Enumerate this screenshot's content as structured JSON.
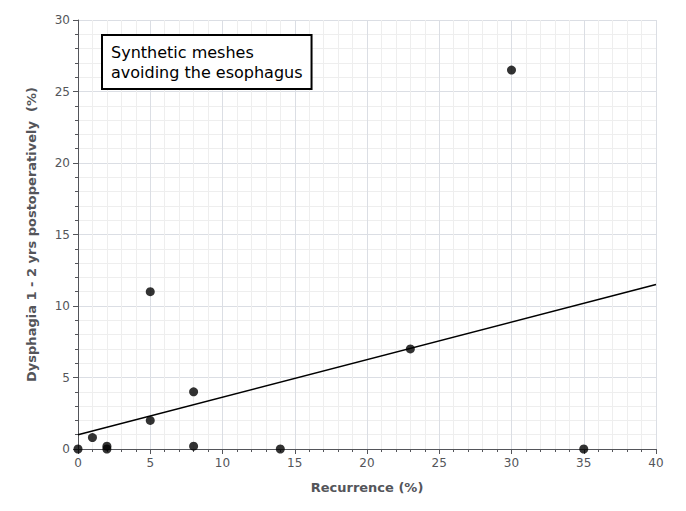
{
  "chart_data": {
    "type": "scatter",
    "xlabel": "Recurrence (%)",
    "ylabel": "Dysphagia 1 - 2 yrs postoperatively  (%)",
    "annotation": "Synthetic meshes\navoiding the esophagus",
    "series": [
      {
        "type": "scatter",
        "color": "#000000",
        "marker": "circle",
        "x": [
          0,
          1,
          2,
          2,
          5,
          5,
          8,
          8,
          14,
          23,
          30,
          35
        ],
        "values": [
          0,
          0.8,
          0.2,
          0,
          11,
          2,
          0.2,
          4,
          0,
          7,
          26.5,
          0
        ]
      },
      {
        "type": "line",
        "color": "#000000",
        "line_style": "solid",
        "x": [
          0,
          40
        ],
        "values": [
          1.0,
          11.5
        ]
      }
    ],
    "xlim": [
      0,
      40
    ],
    "ylim": [
      0,
      30
    ],
    "xticks": [
      0,
      5,
      10,
      15,
      20,
      25,
      30,
      35,
      40
    ],
    "yticks": [
      0,
      5,
      10,
      15,
      20,
      25,
      30
    ],
    "grid": true
  }
}
